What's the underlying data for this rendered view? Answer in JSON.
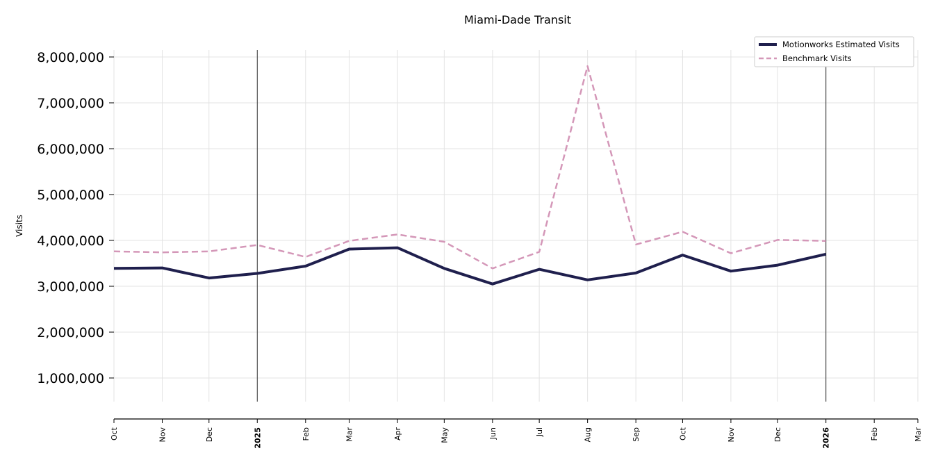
{
  "chart_data": {
    "type": "line",
    "title": "Miami-Dade Transit",
    "xlabel": "",
    "ylabel": "Visits",
    "x_ticks": [
      "Oct",
      "Nov",
      "Dec",
      "2025",
      "Feb",
      "Mar",
      "Apr",
      "May",
      "Jun",
      "Jul",
      "Aug",
      "Sep",
      "Oct",
      "Nov",
      "Dec",
      "2026",
      "Feb",
      "Mar"
    ],
    "x_ticks_bold": [
      "2025",
      "2026"
    ],
    "x": [
      "2024-10",
      "2024-11",
      "2024-12",
      "2025-01",
      "2025-02",
      "2025-03",
      "2025-04",
      "2025-05",
      "2025-06",
      "2025-07",
      "2025-08",
      "2025-09",
      "2025-10",
      "2025-11",
      "2025-12",
      "2026-01"
    ],
    "ylim": [
      500000,
      8150000
    ],
    "y_ticks": [
      1000000,
      2000000,
      3000000,
      4000000,
      5000000,
      6000000,
      7000000,
      8000000
    ],
    "y_tick_labels": [
      "1,000,000",
      "2,000,000",
      "3,000,000",
      "4,000,000",
      "5,000,000",
      "6,000,000",
      "7,000,000",
      "8,000,000"
    ],
    "year_lines": [
      "2025",
      "2026"
    ],
    "grid": true,
    "legend_position": "top-right",
    "series": [
      {
        "name": "Motionworks Estimated Visits",
        "color": "#1f1f4d",
        "style": "solid",
        "values": [
          3390000,
          3400000,
          3180000,
          3280000,
          3440000,
          3810000,
          3840000,
          3390000,
          3050000,
          3370000,
          3140000,
          3290000,
          3680000,
          3330000,
          3460000,
          3700000
        ]
      },
      {
        "name": "Benchmark Visits",
        "color": "#d497b8",
        "style": "dashed",
        "values": [
          3760000,
          3740000,
          3760000,
          3900000,
          3640000,
          3990000,
          4130000,
          3970000,
          3390000,
          3750000,
          7800000,
          3910000,
          4190000,
          3720000,
          4010000,
          3990000
        ]
      }
    ]
  }
}
